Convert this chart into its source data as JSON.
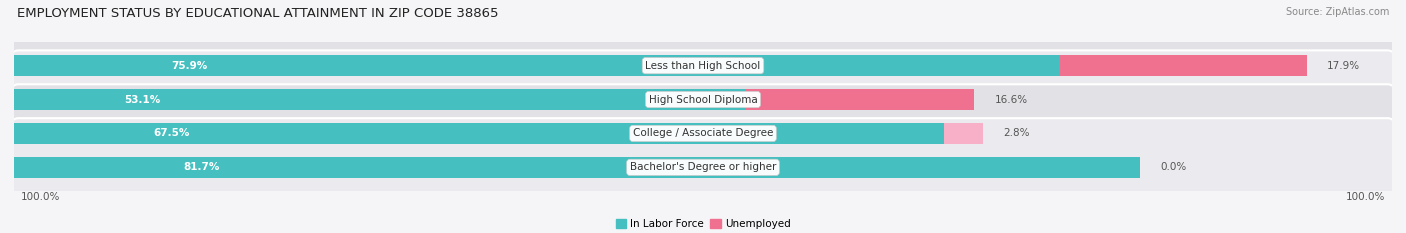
{
  "title": "EMPLOYMENT STATUS BY EDUCATIONAL ATTAINMENT IN ZIP CODE 38865",
  "source": "Source: ZipAtlas.com",
  "categories": [
    "Less than High School",
    "High School Diploma",
    "College / Associate Degree",
    "Bachelor's Degree or higher"
  ],
  "in_labor_force": [
    75.9,
    53.1,
    67.5,
    81.7
  ],
  "unemployed": [
    17.9,
    16.6,
    2.8,
    0.0
  ],
  "color_labor": "#45bfbf",
  "color_unemployed": "#f07090",
  "color_unemployed_light": "#f8b0c8",
  "background_row_dark": "#e2e2e6",
  "background_row_light": "#ebebef",
  "background_fig": "#f5f5f7",
  "legend_labor": "In Labor Force",
  "legend_unemployed": "Unemployed",
  "left_label": "100.0%",
  "right_label": "100.0%",
  "title_fontsize": 9.5,
  "source_fontsize": 7,
  "bar_label_fontsize": 7.5,
  "category_fontsize": 7.5
}
